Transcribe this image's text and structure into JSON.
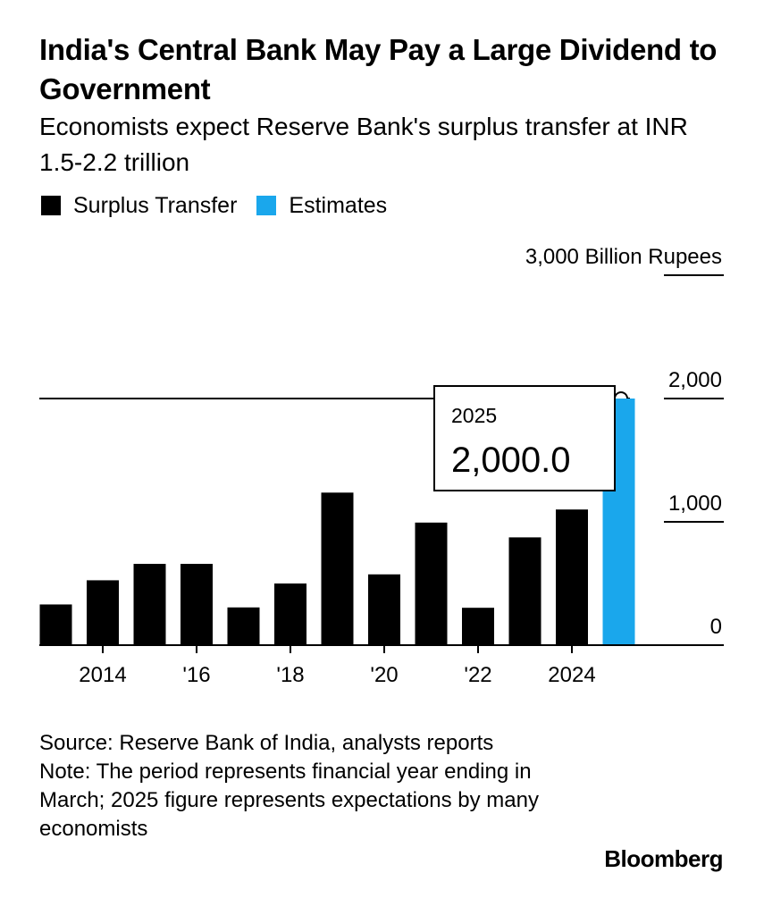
{
  "header": {
    "title": "India's Central Bank May Pay a Large Dividend to Government",
    "subtitle": "Economists expect Reserve Bank's surplus transfer at INR 1.5-2.2 trillion"
  },
  "legend": [
    {
      "label": "Surplus Transfer",
      "color": "#000000"
    },
    {
      "label": "Estimates",
      "color": "#1aa7ec"
    }
  ],
  "tooltip": {
    "label": "2025",
    "value": "2,000.0"
  },
  "footer": {
    "source": "Source: Reserve Bank of India, analysts reports",
    "note": "Note: The period represents financial year ending in March; 2025 figure represents expectations by many economists"
  },
  "brand": "Bloomberg",
  "chart_data": {
    "type": "bar",
    "x": [
      2013,
      2014,
      2015,
      2016,
      2017,
      2018,
      2019,
      2020,
      2021,
      2022,
      2023,
      2024,
      2025
    ],
    "values": [
      330,
      526,
      659,
      659,
      306,
      500,
      1237,
      574,
      994,
      303,
      874,
      1100,
      2000
    ],
    "series": [
      {
        "name": "Surplus Transfer",
        "color": "#000000",
        "x": [
          2013,
          2014,
          2015,
          2016,
          2017,
          2018,
          2019,
          2020,
          2021,
          2022,
          2023,
          2024
        ]
      },
      {
        "name": "Estimates",
        "color": "#1aa7ec",
        "x": [
          2025
        ]
      }
    ],
    "x_tick_labels": [
      {
        "x": 2014,
        "label": "2014"
      },
      {
        "x": 2016,
        "label": "'16"
      },
      {
        "x": 2018,
        "label": "'18"
      },
      {
        "x": 2020,
        "label": "'20"
      },
      {
        "x": 2022,
        "label": "'22"
      },
      {
        "x": 2024,
        "label": "2024"
      }
    ],
    "y_ticks": [
      {
        "value": 0,
        "label": "0"
      },
      {
        "value": 1000,
        "label": "1,000"
      },
      {
        "value": 2000,
        "label": "2,000"
      },
      {
        "value": 3000,
        "label": "3,000 Billion Rupees"
      }
    ],
    "ylim": [
      0,
      3000
    ],
    "reference_line": 2000,
    "grid": false
  }
}
